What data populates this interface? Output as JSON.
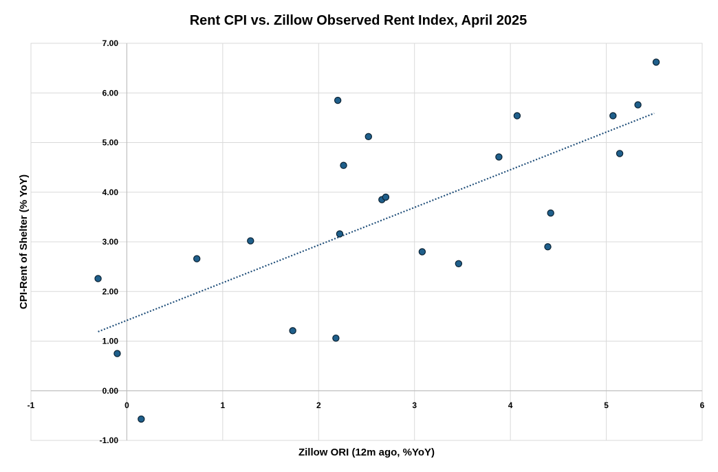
{
  "chart_data": {
    "type": "scatter",
    "title": "Rent CPI vs. Zillow Observed Rent Index, April 2025",
    "xlabel": "Zillow ORI (12m ago, %YoY)",
    "ylabel": "CPI-Rent of Shelter (% YoY)",
    "xlim": [
      -1,
      6
    ],
    "ylim": [
      -1,
      7
    ],
    "xticks": [
      -1,
      0,
      1,
      2,
      3,
      4,
      5,
      6
    ],
    "yticks": [
      -1,
      0,
      1,
      2,
      3,
      4,
      5,
      6,
      7
    ],
    "xtick_labels": [
      "-1",
      "0",
      "1",
      "2",
      "3",
      "4",
      "5",
      "6"
    ],
    "ytick_labels": [
      "-1.00",
      "0.00",
      "1.00",
      "2.00",
      "3.00",
      "4.00",
      "5.00",
      "6.00",
      "7.00"
    ],
    "grid": true,
    "legend": "none",
    "point_color": "#1f5f8b",
    "point_edge_color": "#0b2233",
    "trendline_color": "#1f4e79",
    "trendline": {
      "x": [
        -0.3,
        5.5
      ],
      "y": [
        1.19,
        5.59
      ]
    },
    "points": [
      {
        "x": -0.3,
        "y": 2.26
      },
      {
        "x": -0.1,
        "y": 0.75
      },
      {
        "x": 0.15,
        "y": -0.57
      },
      {
        "x": 0.73,
        "y": 2.66
      },
      {
        "x": 1.29,
        "y": 3.02
      },
      {
        "x": 1.73,
        "y": 1.21
      },
      {
        "x": 2.18,
        "y": 1.06
      },
      {
        "x": 2.2,
        "y": 5.85
      },
      {
        "x": 2.22,
        "y": 3.16
      },
      {
        "x": 2.26,
        "y": 4.54
      },
      {
        "x": 2.52,
        "y": 5.12
      },
      {
        "x": 2.66,
        "y": 3.85
      },
      {
        "x": 2.7,
        "y": 3.9
      },
      {
        "x": 3.08,
        "y": 2.8
      },
      {
        "x": 3.46,
        "y": 2.56
      },
      {
        "x": 3.88,
        "y": 4.71
      },
      {
        "x": 4.07,
        "y": 5.54
      },
      {
        "x": 4.39,
        "y": 2.9
      },
      {
        "x": 4.42,
        "y": 3.58
      },
      {
        "x": 5.07,
        "y": 5.54
      },
      {
        "x": 5.14,
        "y": 4.78
      },
      {
        "x": 5.33,
        "y": 5.76
      },
      {
        "x": 5.52,
        "y": 6.62
      }
    ]
  }
}
